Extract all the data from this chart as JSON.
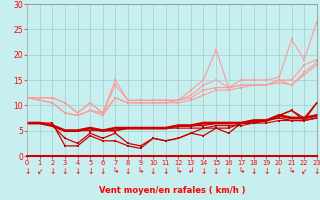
{
  "x": [
    0,
    1,
    2,
    3,
    4,
    5,
    6,
    7,
    8,
    9,
    10,
    11,
    12,
    13,
    14,
    15,
    16,
    17,
    18,
    19,
    20,
    21,
    22,
    23
  ],
  "upper1": [
    11.5,
    11.5,
    11.5,
    10.5,
    8.5,
    10.5,
    8.5,
    15,
    11,
    11,
    11,
    11,
    11,
    13,
    15,
    21,
    13.5,
    15,
    15,
    15,
    15.5,
    23,
    19,
    26.5
  ],
  "upper2": [
    11.5,
    11.5,
    11.5,
    10.5,
    8.5,
    10.5,
    8.5,
    14,
    11,
    11,
    11,
    11,
    11,
    12,
    14,
    15,
    13.5,
    14,
    14,
    14,
    15,
    15,
    18,
    19
  ],
  "upper3": [
    11.5,
    11.0,
    10.5,
    8.5,
    8.0,
    9.0,
    8.5,
    11.5,
    10.5,
    10.5,
    10.5,
    10.5,
    11,
    11.5,
    13,
    13.5,
    13.5,
    14,
    14,
    14,
    15,
    14,
    16.5,
    18.5
  ],
  "upper4": [
    11.5,
    11.0,
    10.5,
    8.5,
    8.0,
    9.0,
    8.0,
    11.5,
    10.5,
    10.5,
    10.5,
    10.5,
    10.5,
    11,
    12,
    13,
    13,
    13.5,
    14,
    14,
    14.5,
    14,
    16,
    18
  ],
  "lower1": [
    6.5,
    6.5,
    6.5,
    2.0,
    2.0,
    4.0,
    3.0,
    3.0,
    2.0,
    1.5,
    3.5,
    3.0,
    3.5,
    4.5,
    4.0,
    5.5,
    4.5,
    6.5,
    6.5,
    7.0,
    8.0,
    9.0,
    7.0,
    10.5
  ],
  "lower2": [
    6.5,
    6.5,
    6.0,
    3.5,
    2.5,
    4.5,
    3.5,
    4.5,
    2.5,
    2.0,
    3.5,
    3.0,
    3.5,
    4.5,
    5.5,
    5.5,
    5.5,
    6.5,
    6.5,
    7.0,
    8.0,
    9.0,
    7.5,
    10.5
  ],
  "lower3": [
    6.5,
    6.5,
    6.0,
    5.0,
    5.0,
    5.5,
    5.0,
    5.5,
    5.5,
    5.5,
    5.5,
    5.5,
    6.0,
    6.0,
    6.5,
    6.5,
    6.5,
    6.5,
    7.0,
    7.0,
    8.0,
    7.5,
    7.5,
    8.0
  ],
  "lower4": [
    6.5,
    6.5,
    6.0,
    5.0,
    5.0,
    5.5,
    5.0,
    5.0,
    5.5,
    5.5,
    5.5,
    5.5,
    6.0,
    6.0,
    6.0,
    6.5,
    6.5,
    6.5,
    7.0,
    7.0,
    7.5,
    7.0,
    7.0,
    7.5
  ],
  "lower5": [
    6.5,
    6.5,
    6.0,
    5.0,
    5.0,
    5.0,
    5.0,
    5.0,
    5.5,
    5.5,
    5.5,
    5.5,
    5.5,
    5.5,
    5.5,
    6.0,
    6.0,
    6.0,
    6.5,
    6.5,
    7.0,
    7.0,
    7.0,
    7.5
  ],
  "arrows_x": [
    0,
    1,
    2,
    3,
    4,
    5,
    6,
    7,
    8,
    9,
    10,
    11,
    12,
    13,
    14,
    15,
    16,
    17,
    18,
    19,
    20,
    21,
    22,
    23
  ],
  "arrow_chars": [
    "↓",
    "↙",
    "↓",
    "↓",
    "↓",
    "↓",
    "↓",
    "↳",
    "↓",
    "↳",
    "↓",
    "↓",
    "↳",
    "↲",
    "↓",
    "↓",
    "↓",
    "↳",
    "↓",
    "↓",
    "↓",
    "↳",
    "↙",
    "↓"
  ],
  "bg_color": "#c8efef",
  "grid_color": "#9ecece",
  "light_red": "#ff9999",
  "med_red": "#ff6666",
  "dark_red": "#cc0000",
  "xlabel": "Vent moyen/en rafales ( km/h )",
  "ylim": [
    0,
    30
  ],
  "xlim": [
    0,
    23
  ]
}
